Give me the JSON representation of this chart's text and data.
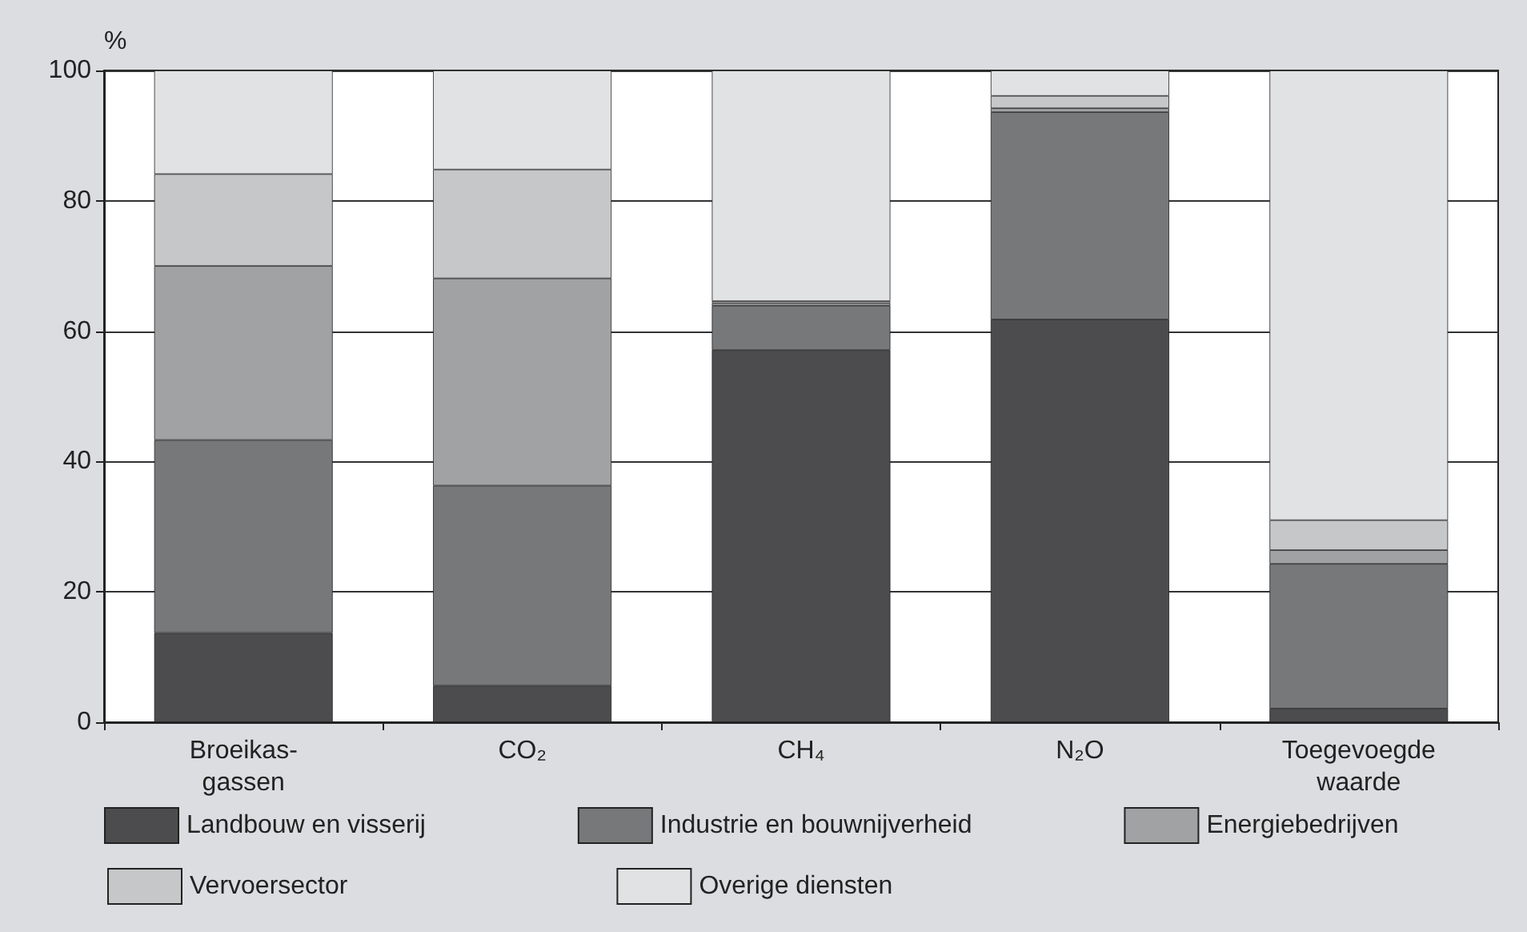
{
  "chart_data": {
    "type": "bar",
    "stacked": true,
    "ylabel": "%",
    "categories": [
      "Broeikas-\ngassen",
      "CO₂",
      "CH₄",
      "N₂O",
      "Toegevoegde\nwaarde"
    ],
    "series": [
      {
        "name": "Landbouw en visserij",
        "color": "#4c4c4e",
        "values": [
          13.7,
          5.6,
          57.1,
          61.8,
          2.1
        ]
      },
      {
        "name": "Industrie en bouwnijverheid",
        "color": "#77787a",
        "values": [
          29.6,
          30.7,
          6.8,
          31.8,
          22.2
        ]
      },
      {
        "name": "Energiebedrijven",
        "color": "#a1a2a4",
        "values": [
          26.7,
          31.8,
          0.4,
          0.6,
          2.1
        ]
      },
      {
        "name": "Vervoersector",
        "color": "#c6c7c9",
        "values": [
          14.1,
          16.7,
          0.3,
          1.9,
          4.6
        ]
      },
      {
        "name": "Overige diensten",
        "color": "#e1e2e4",
        "values": [
          15.9,
          15.2,
          35.4,
          3.9,
          69.0
        ]
      }
    ],
    "ylim": [
      0,
      100
    ],
    "yticks": [
      0,
      20,
      40,
      60,
      80,
      100
    ],
    "grid": "y",
    "legend": "bottom"
  }
}
